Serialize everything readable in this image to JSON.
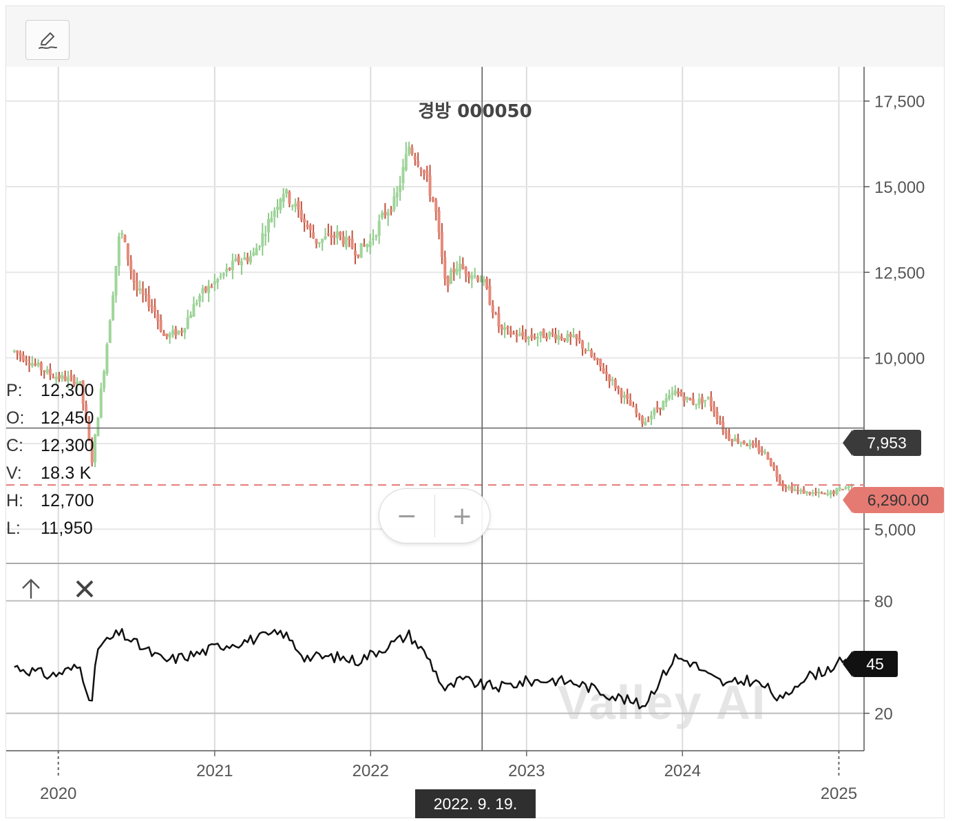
{
  "toolbar": {
    "draw_icon": "pencil-icon"
  },
  "chart_data": {
    "type": "candlestick",
    "title": "경방 000050",
    "x_range": [
      "2019-09",
      "2025-03"
    ],
    "x_ticks": [
      "2020",
      "2021",
      "2022",
      "2023",
      "2024",
      "2025"
    ],
    "y_range": [
      4000,
      18500
    ],
    "y_ticks": [
      "5,000",
      "7,500",
      "10,000",
      "12,500",
      "15,000",
      "17,500"
    ],
    "price_path": [
      [
        "2019-09-20",
        10200
      ],
      [
        "2019-12-15",
        9500
      ],
      [
        "2020-02-20",
        9300
      ],
      [
        "2020-03-20",
        7000
      ],
      [
        "2020-04-20",
        10000
      ],
      [
        "2020-05-25",
        13800
      ],
      [
        "2020-07-01",
        12000
      ],
      [
        "2020-08-10",
        11500
      ],
      [
        "2020-09-05",
        10600
      ],
      [
        "2020-10-15",
        10800
      ],
      [
        "2020-11-25",
        11800
      ],
      [
        "2021-01-10",
        12300
      ],
      [
        "2021-02-20",
        12800
      ],
      [
        "2021-04-01",
        13000
      ],
      [
        "2021-05-01",
        13800
      ],
      [
        "2021-06-10",
        14900
      ],
      [
        "2021-07-20",
        14200
      ],
      [
        "2021-08-25",
        13400
      ],
      [
        "2021-10-15",
        13600
      ],
      [
        "2021-12-01",
        13100
      ],
      [
        "2022-01-01",
        13400
      ],
      [
        "2022-02-01",
        14200
      ],
      [
        "2022-03-01",
        14600
      ],
      [
        "2022-04-01",
        16200
      ],
      [
        "2022-05-01",
        15600
      ],
      [
        "2022-06-01",
        14400
      ],
      [
        "2022-06-25",
        12100
      ],
      [
        "2022-07-20",
        12700
      ],
      [
        "2022-09-19",
        12300
      ],
      [
        "2022-11-01",
        10800
      ],
      [
        "2023-01-01",
        10600
      ],
      [
        "2023-03-01",
        10700
      ],
      [
        "2023-05-01",
        10500
      ],
      [
        "2023-07-15",
        9400
      ],
      [
        "2023-10-01",
        8100
      ],
      [
        "2023-11-01",
        8500
      ],
      [
        "2023-12-15",
        9000
      ],
      [
        "2024-01-25",
        8700
      ],
      [
        "2024-03-01",
        8800
      ],
      [
        "2024-04-15",
        7700
      ],
      [
        "2024-06-01",
        7500
      ],
      [
        "2024-07-15",
        7200
      ],
      [
        "2024-08-20",
        6300
      ],
      [
        "2024-10-01",
        6100
      ],
      [
        "2024-12-01",
        6000
      ],
      [
        "2025-02-01",
        6290
      ]
    ],
    "crosshair": {
      "date": "2022. 9. 19.",
      "price_label": "7,953",
      "price": 7953
    },
    "last_price": {
      "label": "6,290.00",
      "value": 6290
    },
    "ohlc_readout": {
      "P": "12,300",
      "O": "12,450",
      "C": "12,300",
      "V": "18.3 K",
      "H": "12,700",
      "L": "11,950"
    },
    "indicator": {
      "type": "line",
      "y_range": [
        0,
        100
      ],
      "y_ticks": [
        "20",
        "80"
      ],
      "current_label": "45",
      "current": 45,
      "path": [
        [
          "2019-09-20",
          45
        ],
        [
          "2019-12-15",
          40
        ],
        [
          "2020-02-20",
          45
        ],
        [
          "2020-03-20",
          25
        ],
        [
          "2020-04-01",
          55
        ],
        [
          "2020-05-25",
          63
        ],
        [
          "2020-07-01",
          57
        ],
        [
          "2020-09-05",
          48
        ],
        [
          "2020-11-25",
          52
        ],
        [
          "2021-01-10",
          56
        ],
        [
          "2021-03-01",
          58
        ],
        [
          "2021-05-01",
          61
        ],
        [
          "2021-06-10",
          63
        ],
        [
          "2021-08-01",
          50
        ],
        [
          "2021-10-15",
          50
        ],
        [
          "2021-12-01",
          48
        ],
        [
          "2022-02-01",
          55
        ],
        [
          "2022-04-01",
          62
        ],
        [
          "2022-05-15",
          50
        ],
        [
          "2022-06-25",
          32
        ],
        [
          "2022-08-01",
          38
        ],
        [
          "2022-09-19",
          35
        ],
        [
          "2022-11-01",
          34
        ],
        [
          "2023-01-01",
          37
        ],
        [
          "2023-03-01",
          38
        ],
        [
          "2023-05-01",
          36
        ],
        [
          "2023-07-15",
          30
        ],
        [
          "2023-10-01",
          24
        ],
        [
          "2023-11-01",
          35
        ],
        [
          "2023-12-15",
          50
        ],
        [
          "2024-01-25",
          47
        ],
        [
          "2024-03-01",
          40
        ],
        [
          "2024-04-15",
          35
        ],
        [
          "2024-06-01",
          38
        ],
        [
          "2024-07-15",
          34
        ],
        [
          "2024-08-20",
          26
        ],
        [
          "2024-10-01",
          38
        ],
        [
          "2024-12-01",
          43
        ],
        [
          "2025-01-01",
          47
        ],
        [
          "2025-02-01",
          45
        ]
      ]
    },
    "watermark": "Valley AI"
  },
  "zoom": {
    "minus": "−",
    "plus": "+"
  },
  "indicator_tools": {
    "up_icon": "arrow-up-icon",
    "close_icon": "close-icon"
  }
}
